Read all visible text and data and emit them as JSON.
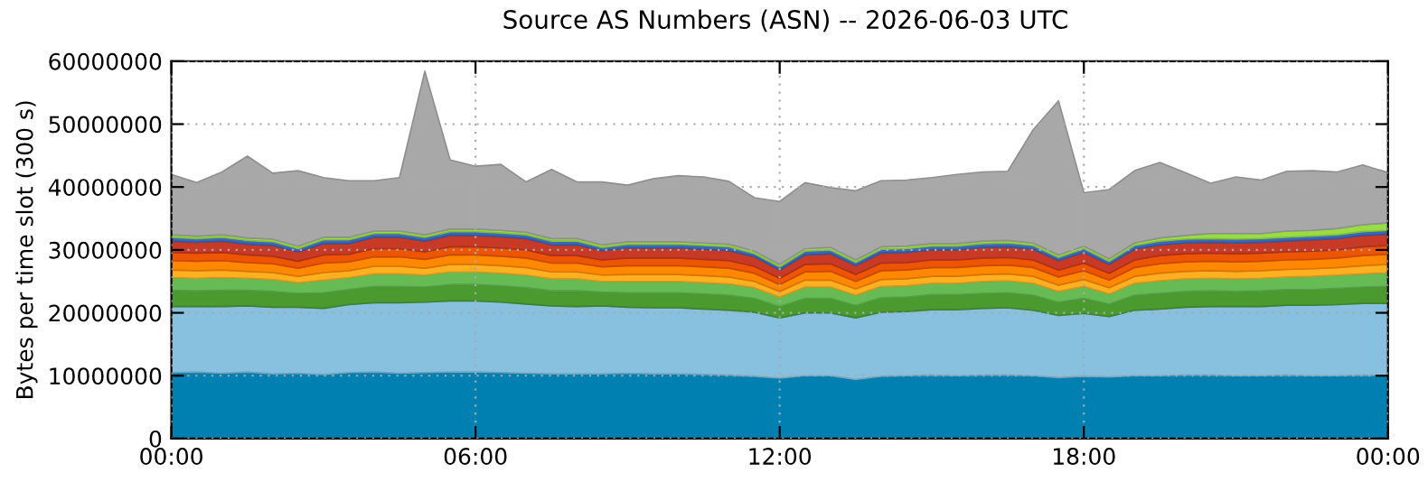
{
  "chart_data": {
    "type": "area",
    "stacked": true,
    "title": "Source AS Numbers (ASN) -- 2026-06-03 UTC",
    "ylabel": "Bytes per time slot (300 s)",
    "x": [
      0,
      0.5,
      1,
      1.5,
      2,
      2.5,
      3,
      3.5,
      4,
      4.5,
      5,
      5.5,
      6,
      6.5,
      7,
      7.5,
      8,
      8.5,
      9,
      9.5,
      10,
      10.5,
      11,
      11.5,
      12,
      12.5,
      13,
      13.5,
      14,
      14.5,
      15,
      15.5,
      16,
      16.5,
      17,
      17.5,
      18,
      18.5,
      19,
      19.5,
      20,
      20.5,
      21,
      21.5,
      22,
      22.5,
      23,
      23.5,
      24
    ],
    "xlim": [
      0,
      24
    ],
    "xticks": [
      {
        "value": 0,
        "label": "00:00"
      },
      {
        "value": 6,
        "label": "06:00"
      },
      {
        "value": 12,
        "label": "12:00"
      },
      {
        "value": 18,
        "label": "18:00"
      },
      {
        "value": 24,
        "label": "00:00"
      }
    ],
    "ylim": [
      0,
      60000000
    ],
    "yticks": [
      0,
      10000000,
      20000000,
      30000000,
      40000000,
      50000000,
      60000000
    ],
    "grid": true,
    "series": [
      {
        "color": "#0080b0",
        "values": [
          10500000.0,
          10600000.0,
          10400000.0,
          10600000.0,
          10300000.0,
          10400000.0,
          10200000.0,
          10500000.0,
          10600000.0,
          10400000.0,
          10500000.0,
          10600000.0,
          10600000.0,
          10500000.0,
          10400000.0,
          10300000.0,
          10300000.0,
          10300000.0,
          10400000.0,
          10300000.0,
          10300000.0,
          10200000.0,
          10100000.0,
          9900000.0,
          9600000.0,
          10000000.0,
          10000000.0,
          9400000.0,
          9900000.0,
          10000000.0,
          10100000.0,
          10000000.0,
          10100000.0,
          10100000.0,
          10000000.0,
          9700000.0,
          9900000.0,
          9800000.0,
          10000000.0,
          10000000.0,
          10100000.0,
          10100000.0,
          10000000.0,
          10000000.0,
          10100000.0,
          10000000.0,
          10000000.0,
          10100000.0,
          10000000.0
        ]
      },
      {
        "color": "#88c0e0",
        "values": [
          10500000.0,
          10400000.0,
          10600000.0,
          10500000.0,
          10600000.0,
          10500000.0,
          10500000.0,
          10800000.0,
          11000000.0,
          11200000.0,
          11200000.0,
          11300000.0,
          11300000.0,
          11200000.0,
          11000000.0,
          10800000.0,
          10700000.0,
          10800000.0,
          10500000.0,
          10500000.0,
          10500000.0,
          10400000.0,
          10300000.0,
          10200000.0,
          9600000.0,
          10000000.0,
          10000000.0,
          9800000.0,
          10200000.0,
          10200000.0,
          10400000.0,
          10500000.0,
          10600000.0,
          10700000.0,
          10400000.0,
          9900000.0,
          10000000.0,
          9600000.0,
          10400000.0,
          10600000.0,
          10800000.0,
          10900000.0,
          11000000.0,
          11000000.0,
          11100000.0,
          11200000.0,
          11300000.0,
          11400000.0,
          11500000.0
        ]
      },
      {
        "color": "#4a9a30",
        "values": [
          2600000.0,
          2500000.0,
          2600000.0,
          2500000.0,
          2500000.0,
          2200000.0,
          2500000.0,
          2400000.0,
          2600000.0,
          2600000.0,
          2400000.0,
          2600000.0,
          2600000.0,
          2600000.0,
          2600000.0,
          2400000.0,
          2500000.0,
          2200000.0,
          2300000.0,
          2400000.0,
          2400000.0,
          2400000.0,
          2400000.0,
          2200000.0,
          1800000.0,
          2300000.0,
          2300000.0,
          2000000.0,
          2300000.0,
          2300000.0,
          2400000.0,
          2400000.0,
          2400000.0,
          2400000.0,
          2400000.0,
          2100000.0,
          2400000.0,
          2000000.0,
          2400000.0,
          2500000.0,
          2500000.0,
          2500000.0,
          2400000.0,
          2500000.0,
          2500000.0,
          2500000.0,
          2600000.0,
          2600000.0,
          2700000.0
        ]
      },
      {
        "color": "#66bb55",
        "values": [
          2000000.0,
          2000000.0,
          2000000.0,
          1900000.0,
          1900000.0,
          1700000.0,
          2000000.0,
          1900000.0,
          2000000.0,
          2000000.0,
          1900000.0,
          2000000.0,
          2000000.0,
          2000000.0,
          2000000.0,
          1900000.0,
          1900000.0,
          1700000.0,
          1800000.0,
          1800000.0,
          1800000.0,
          1800000.0,
          1800000.0,
          1700000.0,
          1500000.0,
          1800000.0,
          1800000.0,
          1600000.0,
          1800000.0,
          1800000.0,
          1800000.0,
          1800000.0,
          1900000.0,
          1900000.0,
          1900000.0,
          1700000.0,
          1900000.0,
          1600000.0,
          1900000.0,
          2000000.0,
          2000000.0,
          2000000.0,
          2000000.0,
          2000000.0,
          2000000.0,
          2100000.0,
          2100000.0,
          2100000.0,
          2200000.0
        ]
      },
      {
        "color": "#ffb020",
        "values": [
          1200000.0,
          1200000.0,
          1200000.0,
          1100000.0,
          1100000.0,
          1000000.0,
          1200000.0,
          1100000.0,
          1200000.0,
          1200000.0,
          1100000.0,
          1200000.0,
          1200000.0,
          1200000.0,
          1200000.0,
          1100000.0,
          1100000.0,
          1000000.0,
          1100000.0,
          1100000.0,
          1100000.0,
          1100000.0,
          1100000.0,
          1000000.0,
          900000.0,
          1100000.0,
          1100000.0,
          1000000.0,
          1100000.0,
          1100000.0,
          1100000.0,
          1100000.0,
          1100000.0,
          1100000.0,
          1100000.0,
          1000000.0,
          1100000.0,
          1000000.0,
          1100000.0,
          1200000.0,
          1200000.0,
          1200000.0,
          1200000.0,
          1200000.0,
          1200000.0,
          1200000.0,
          1200000.0,
          1300000.0,
          1300000.0
        ]
      },
      {
        "color": "#ff8800",
        "values": [
          1500000.0,
          1500000.0,
          1500000.0,
          1400000.0,
          1400000.0,
          1300000.0,
          1500000.0,
          1400000.0,
          1500000.0,
          1500000.0,
          1400000.0,
          1500000.0,
          1500000.0,
          1500000.0,
          1500000.0,
          1400000.0,
          1400000.0,
          1300000.0,
          1400000.0,
          1400000.0,
          1400000.0,
          1400000.0,
          1400000.0,
          1300000.0,
          1100000.0,
          1300000.0,
          1400000.0,
          1200000.0,
          1400000.0,
          1400000.0,
          1400000.0,
          1400000.0,
          1400000.0,
          1400000.0,
          1400000.0,
          1300000.0,
          1400000.0,
          1200000.0,
          1400000.0,
          1500000.0,
          1500000.0,
          1500000.0,
          1500000.0,
          1500000.0,
          1500000.0,
          1500000.0,
          1500000.0,
          1600000.0,
          1600000.0
        ]
      },
      {
        "color": "#ee5500",
        "values": [
          1300000.0,
          1300000.0,
          1300000.0,
          1200000.0,
          1200000.0,
          1100000.0,
          1300000.0,
          1200000.0,
          1300000.0,
          1300000.0,
          1200000.0,
          1300000.0,
          1300000.0,
          1300000.0,
          1300000.0,
          1200000.0,
          1200000.0,
          1100000.0,
          1200000.0,
          1200000.0,
          1200000.0,
          1200000.0,
          1200000.0,
          1100000.0,
          1000000.0,
          1200000.0,
          1200000.0,
          1100000.0,
          1200000.0,
          1200000.0,
          1200000.0,
          1200000.0,
          1200000.0,
          1200000.0,
          1200000.0,
          1100000.0,
          1200000.0,
          1100000.0,
          1200000.0,
          1300000.0,
          1300000.0,
          1300000.0,
          1300000.0,
          1300000.0,
          1300000.0,
          1300000.0,
          1300000.0,
          1400000.0,
          1400000.0
        ]
      },
      {
        "color": "#c83a25",
        "values": [
          1800000.0,
          1700000.0,
          1800000.0,
          1700000.0,
          1700000.0,
          1500000.0,
          1800000.0,
          1700000.0,
          1800000.0,
          1800000.0,
          1700000.0,
          1800000.0,
          1800000.0,
          1800000.0,
          1800000.0,
          1700000.0,
          1700000.0,
          1500000.0,
          1600000.0,
          1600000.0,
          1600000.0,
          1600000.0,
          1600000.0,
          1500000.0,
          1300000.0,
          1500000.0,
          1600000.0,
          1400000.0,
          1600000.0,
          1600000.0,
          1600000.0,
          1600000.0,
          1700000.0,
          1700000.0,
          1700000.0,
          1500000.0,
          1700000.0,
          1400000.0,
          1700000.0,
          1700000.0,
          1700000.0,
          1700000.0,
          1700000.0,
          1700000.0,
          1700000.0,
          1800000.0,
          1800000.0,
          1800000.0,
          1800000.0
        ]
      },
      {
        "color": "#3a66bb",
        "values": [
          600000.0,
          600000.0,
          600000.0,
          600000.0,
          600000.0,
          500000.0,
          600000.0,
          600000.0,
          600000.0,
          600000.0,
          600000.0,
          600000.0,
          600000.0,
          600000.0,
          600000.0,
          600000.0,
          600000.0,
          500000.0,
          600000.0,
          600000.0,
          600000.0,
          600000.0,
          600000.0,
          500000.0,
          500000.0,
          600000.0,
          600000.0,
          500000.0,
          600000.0,
          600000.0,
          600000.0,
          600000.0,
          600000.0,
          600000.0,
          600000.0,
          500000.0,
          600000.0,
          500000.0,
          600000.0,
          600000.0,
          600000.0,
          600000.0,
          600000.0,
          600000.0,
          600000.0,
          600000.0,
          600000.0,
          600000.0,
          600000.0
        ]
      },
      {
        "color": "#99dd44",
        "values": [
          400000.0,
          400000.0,
          400000.0,
          400000.0,
          400000.0,
          400000.0,
          400000.0,
          400000.0,
          400000.0,
          400000.0,
          400000.0,
          400000.0,
          400000.0,
          400000.0,
          400000.0,
          400000.0,
          400000.0,
          400000.0,
          400000.0,
          400000.0,
          400000.0,
          400000.0,
          400000.0,
          400000.0,
          400000.0,
          400000.0,
          400000.0,
          400000.0,
          400000.0,
          400000.0,
          400000.0,
          400000.0,
          400000.0,
          400000.0,
          400000.0,
          400000.0,
          400000.0,
          400000.0,
          400000.0,
          500000.0,
          600000.0,
          800000.0,
          900000.0,
          800000.0,
          1000000.0,
          900000.0,
          1000000.0,
          1100000.0,
          1200000.0
        ]
      },
      {
        "color": "#a8a8a8",
        "values": [
          9600000.0,
          8500000.0,
          10000000.0,
          13000000.0,
          10500000.0,
          12000000.0,
          9500000.0,
          9000000.0,
          8000000.0,
          8500000.0,
          26000000.0,
          11000000.0,
          10000000.0,
          10500000.0,
          8000000.0,
          11000000.0,
          9000000.0,
          10000000.0,
          9000000.0,
          10000000.0,
          10500000.0,
          10500000.0,
          10000000.0,
          8500000.0,
          10000000.0,
          10500000.0,
          9500000.0,
          11000000.0,
          10500000.0,
          10500000.0,
          10500000.0,
          11000000.0,
          11000000.0,
          11000000.0,
          18000000.0,
          24500000.0,
          8500000.0,
          11000000.0,
          11500000.0,
          12000000.0,
          10000000.0,
          8000000.0,
          9000000.0,
          8500000.0,
          9500000.0,
          9500000.0,
          9000000.0,
          9500000.0,
          8000000.0
        ]
      }
    ]
  }
}
